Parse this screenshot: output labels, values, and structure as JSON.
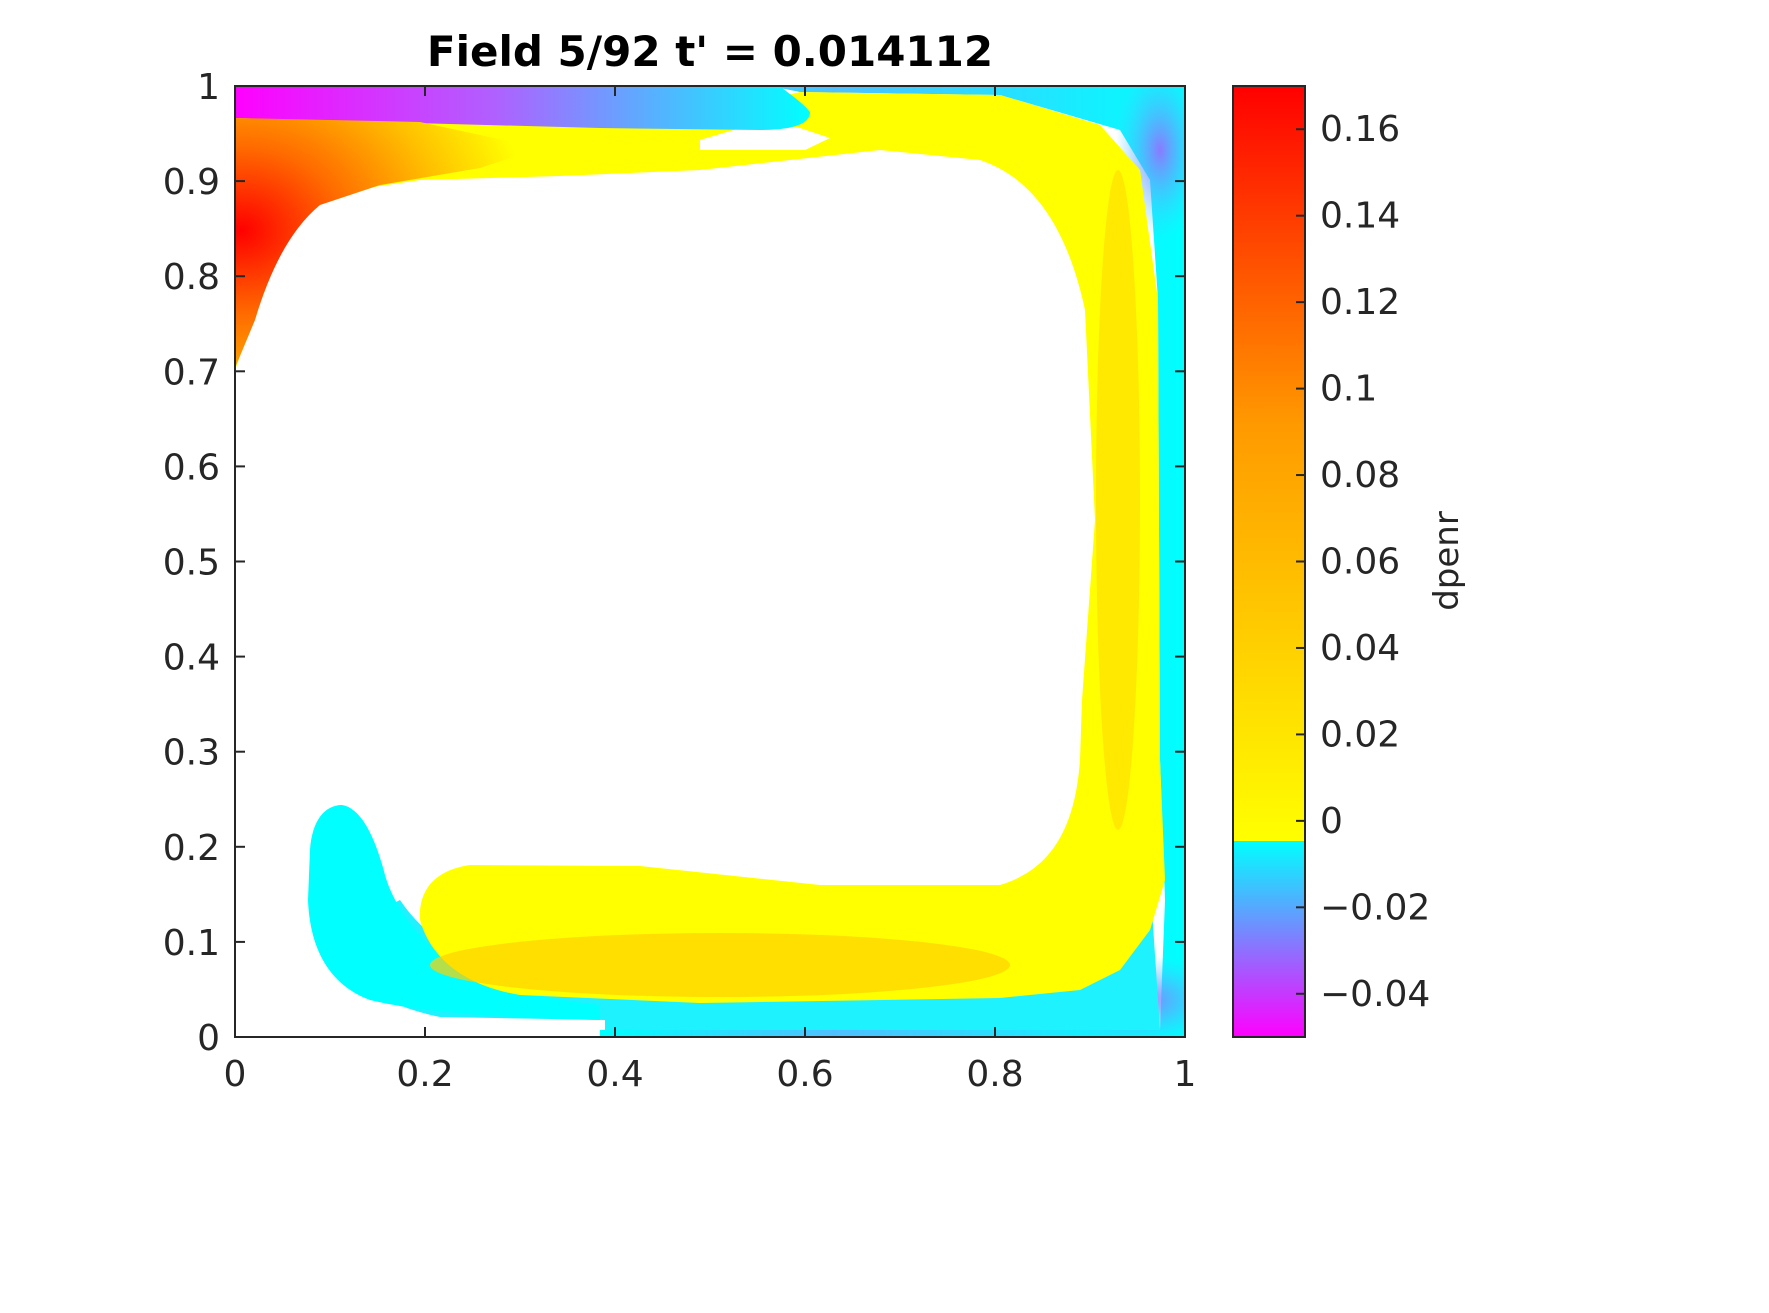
{
  "chart_data": {
    "type": "heatmap",
    "title": "Field 5/92  t' = 0.014112",
    "xlim": [
      0,
      1
    ],
    "ylim": [
      0,
      1
    ],
    "x_ticks": [
      0,
      0.2,
      0.4,
      0.6,
      0.8,
      1
    ],
    "x_tick_labels": [
      "0",
      "0.2",
      "0.4",
      "0.6",
      "0.8",
      "1"
    ],
    "y_ticks": [
      0,
      0.1,
      0.2,
      0.3,
      0.4,
      0.5,
      0.6,
      0.7,
      0.8,
      0.9,
      1
    ],
    "y_tick_labels": [
      "0",
      "0.1",
      "0.2",
      "0.3",
      "0.4",
      "0.5",
      "0.6",
      "0.7",
      "0.8",
      "0.9",
      "1"
    ],
    "grid": false,
    "colorbar": {
      "label": "dpenr",
      "clim": [
        -0.05,
        0.17
      ],
      "ticks": [
        0.16,
        0.14,
        0.12,
        0.1,
        0.08,
        0.06,
        0.04,
        0.02,
        0,
        -0.02,
        -0.04
      ],
      "tick_labels": [
        "0.16",
        "0.14",
        "0.12",
        "0.1",
        "0.08",
        "0.06",
        "0.04",
        "0.02",
        "0",
        "−0.02",
        "−0.04"
      ],
      "colors": {
        "max": "#ff0000",
        "mid_high": "#ff8c00",
        "zero_positive": "#ffff00",
        "zero_negative": "#00ffff",
        "mid_negative": "#7f7fff",
        "min": "#ff00ff"
      }
    },
    "regions": [
      {
        "name": "top-left hot zone",
        "sign": "positive",
        "peak_value": 0.16
      },
      {
        "name": "top negative band",
        "sign": "negative",
        "peak_value": -0.04
      },
      {
        "name": "yellow loop",
        "sign": "positive",
        "peak_value": 0.02
      },
      {
        "name": "right negative wall band",
        "sign": "negative",
        "peak_value": -0.02
      },
      {
        "name": "bottom negative band",
        "sign": "negative",
        "peak_value": -0.02
      },
      {
        "name": "bottom-left negative lobe",
        "sign": "negative",
        "peak_value": 0
      },
      {
        "name": "center",
        "sign": "none"
      }
    ]
  }
}
